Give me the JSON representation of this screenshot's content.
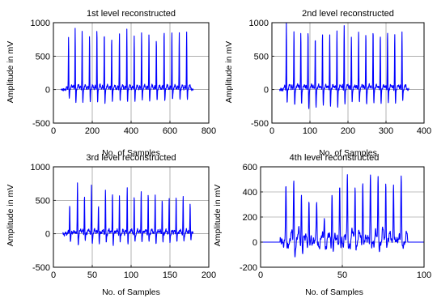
{
  "colors": {
    "line": "#0000ff",
    "grid": "#808080",
    "axes": "#000000"
  },
  "chart_data": [
    {
      "type": "line",
      "title": "1st level reconstructed",
      "xlabel": "No. of Samples",
      "ylabel": "Amplitude in mV",
      "xlim": [
        0,
        800
      ],
      "ylim": [
        -500,
        1000
      ],
      "xticks": [
        0,
        200,
        400,
        600,
        800
      ],
      "yticks": [
        -500,
        0,
        500,
        1000
      ],
      "grid": true,
      "signal": {
        "x_start": 40,
        "x_end": 720,
        "n_points": 700,
        "beat_positions": [
          78,
          112,
          148,
          186,
          224,
          262,
          300,
          340,
          378,
          416,
          454,
          492,
          530,
          570,
          610,
          648,
          686
        ],
        "peak_values": [
          780,
          920,
          880,
          800,
          920,
          880,
          780,
          850,
          910,
          820,
          880,
          850,
          760,
          900,
          870,
          860,
          880
        ],
        "trough_values": [
          -140,
          -210,
          -200,
          -190,
          -180,
          -200,
          -190,
          -170,
          -190,
          -180,
          -160,
          -190,
          -170,
          -180,
          -150,
          -160,
          -150
        ],
        "beat_width": 4,
        "wave_amplitude": 20
      },
      "series": [
        {
          "values_note": ""
        }
      ]
    },
    {
      "type": "line",
      "title": "2nd level reconstructed",
      "xlabel": "No. of Samples",
      "ylabel": "Amplitude in mV",
      "xlim": [
        0,
        400
      ],
      "ylim": [
        -500,
        1000
      ],
      "xticks": [
        0,
        100,
        200,
        300,
        400
      ],
      "yticks": [
        -500,
        0,
        500,
        1000
      ],
      "grid": true,
      "signal": {
        "x_start": 20,
        "x_end": 360,
        "n_points": 700,
        "beat_positions": [
          38,
          58,
          76,
          95,
          114,
          133,
          152,
          171,
          190,
          209,
          228,
          247,
          266,
          285,
          304,
          323,
          342
        ],
        "peak_values": [
          980,
          900,
          860,
          900,
          810,
          850,
          830,
          870,
          950,
          790,
          880,
          860,
          900,
          820,
          860,
          820,
          870
        ],
        "trough_values": [
          -190,
          -250,
          -220,
          -310,
          -270,
          -230,
          -240,
          -250,
          -220,
          -190,
          -200,
          -230,
          -190,
          -200,
          -180,
          -200,
          -170
        ],
        "beat_width": 2.2,
        "wave_amplitude": 25
      },
      "series": [
        {
          "values_note": ""
        }
      ]
    },
    {
      "type": "line",
      "title": "3rd level reconstructed",
      "xlabel": "No. of Samples",
      "ylabel": "Amplitude in mV",
      "xlim": [
        0,
        200
      ],
      "ylim": [
        -500,
        1000
      ],
      "xticks": [
        0,
        50,
        100,
        150,
        200
      ],
      "yticks": [
        -500,
        0,
        500,
        1000
      ],
      "grid": true,
      "signal": {
        "x_start": 12,
        "x_end": 180,
        "n_points": 700,
        "beat_positions": [
          21,
          31,
          40,
          49,
          58,
          67,
          76,
          85,
          95,
          104,
          113,
          122,
          131,
          140,
          149,
          158,
          167,
          176
        ],
        "peak_values": [
          460,
          740,
          590,
          720,
          450,
          640,
          610,
          560,
          710,
          540,
          650,
          610,
          590,
          530,
          500,
          560,
          540,
          470
        ],
        "trough_values": [
          -130,
          -160,
          -120,
          -150,
          -140,
          -130,
          -150,
          -140,
          -150,
          -130,
          -120,
          -140,
          -130,
          -130,
          -110,
          -120,
          -120,
          -90
        ],
        "beat_width": 1.1,
        "wave_amplitude": 40
      },
      "series": [
        {
          "values_note": ""
        }
      ]
    },
    {
      "type": "line",
      "title": "4th level reconstructed",
      "xlabel": "No. of Samples",
      "ylabel": "Amplitude in mV",
      "xlim": [
        0,
        100
      ],
      "ylim": [
        -200,
        600
      ],
      "xticks": [
        0,
        50,
        100
      ],
      "yticks": [
        -200,
        0,
        200,
        400,
        600
      ],
      "grid": true,
      "signal": {
        "x_start": 0,
        "x_end": 100,
        "n_points": 900,
        "beat_positions": [
          15.5,
          20.3,
          25,
          29.6,
          34.3,
          39,
          43.7,
          48.4,
          53.1,
          57.8,
          62.5,
          67.2,
          71.9,
          76.6,
          81.3,
          86
        ],
        "peak_values": [
          460,
          500,
          390,
          300,
          300,
          230,
          410,
          400,
          500,
          480,
          510,
          500,
          490,
          500,
          470,
          500
        ],
        "trough_values": [
          -80,
          -70,
          -60,
          -50,
          -40,
          -30,
          -60,
          -60,
          -50,
          -50,
          -40,
          -40,
          -30,
          -40,
          -30,
          -30
        ],
        "beat_width": 0.75,
        "wave_amplitude": 70,
        "flat_before": 12,
        "flat_after": 90
      },
      "series": [
        {
          "values_note": ""
        }
      ]
    }
  ]
}
